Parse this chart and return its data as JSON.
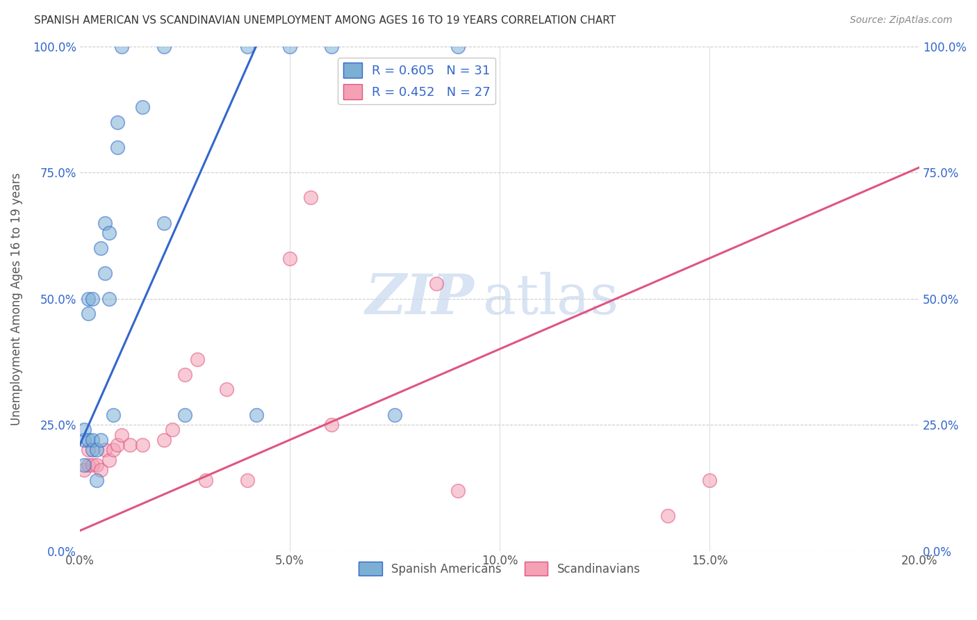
{
  "title": "SPANISH AMERICAN VS SCANDINAVIAN UNEMPLOYMENT AMONG AGES 16 TO 19 YEARS CORRELATION CHART",
  "source": "Source: ZipAtlas.com",
  "ylabel": "Unemployment Among Ages 16 to 19 years",
  "xlabel_ticks": [
    "0.0%",
    "5.0%",
    "10.0%",
    "15.0%",
    "20.0%"
  ],
  "xlabel_vals": [
    0.0,
    0.05,
    0.1,
    0.15,
    0.2
  ],
  "ylabel_ticks": [
    "0.0%",
    "25.0%",
    "50.0%",
    "75.0%",
    "100.0%"
  ],
  "ylabel_vals": [
    0.0,
    0.25,
    0.5,
    0.75,
    1.0
  ],
  "xlim": [
    0.0,
    0.2
  ],
  "ylim": [
    0.0,
    1.0
  ],
  "spanish_R": 0.605,
  "spanish_N": 31,
  "scand_R": 0.452,
  "scand_N": 27,
  "spanish_color": "#7BAFD4",
  "scand_color": "#F4A0B5",
  "spanish_line_color": "#3366CC",
  "scand_line_color": "#E05580",
  "legend_text_color": "#3366CC",
  "watermark_zip": "ZIP",
  "watermark_atlas": "atlas",
  "spanish_x": [
    0.001,
    0.001,
    0.001,
    0.002,
    0.002,
    0.002,
    0.003,
    0.003,
    0.003,
    0.004,
    0.004,
    0.005,
    0.005,
    0.006,
    0.006,
    0.007,
    0.007,
    0.008,
    0.009,
    0.009,
    0.01,
    0.015,
    0.02,
    0.02,
    0.025,
    0.04,
    0.042,
    0.05,
    0.06,
    0.075,
    0.09
  ],
  "spanish_y": [
    0.22,
    0.24,
    0.17,
    0.47,
    0.5,
    0.22,
    0.2,
    0.22,
    0.5,
    0.14,
    0.2,
    0.6,
    0.22,
    0.65,
    0.55,
    0.63,
    0.5,
    0.27,
    0.8,
    0.85,
    1.0,
    0.88,
    0.65,
    1.0,
    0.27,
    1.0,
    0.27,
    1.0,
    1.0,
    0.27,
    1.0
  ],
  "scand_x": [
    0.001,
    0.002,
    0.002,
    0.003,
    0.004,
    0.005,
    0.006,
    0.007,
    0.008,
    0.009,
    0.01,
    0.012,
    0.015,
    0.02,
    0.022,
    0.025,
    0.028,
    0.03,
    0.035,
    0.04,
    0.05,
    0.055,
    0.06,
    0.085,
    0.09,
    0.14,
    0.15
  ],
  "scand_y": [
    0.16,
    0.17,
    0.2,
    0.17,
    0.17,
    0.16,
    0.2,
    0.18,
    0.2,
    0.21,
    0.23,
    0.21,
    0.21,
    0.22,
    0.24,
    0.35,
    0.38,
    0.14,
    0.32,
    0.14,
    0.58,
    0.7,
    0.25,
    0.53,
    0.12,
    0.07,
    0.14
  ],
  "blue_line_x": [
    0.0,
    0.042
  ],
  "blue_line_y": [
    0.21,
    1.0
  ],
  "pink_line_x": [
    0.0,
    0.2
  ],
  "pink_line_y": [
    0.04,
    0.76
  ]
}
